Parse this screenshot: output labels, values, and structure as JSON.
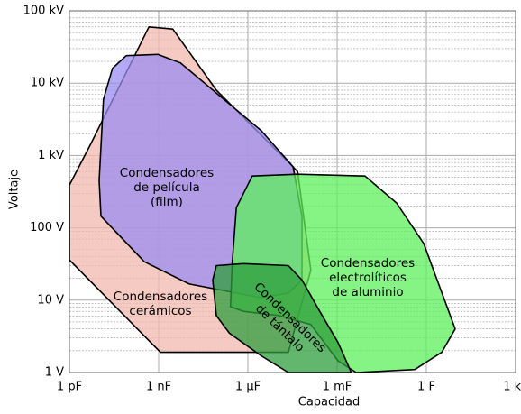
{
  "chart_data": {
    "type": "region",
    "x_label": "Capacidad",
    "y_label": "Voltaje",
    "x_log": true,
    "y_log": true,
    "grid": true,
    "minor_grid": true,
    "xlim": [
      1e-12,
      1000
    ],
    "ylim": [
      1,
      100000
    ],
    "xticks": [
      {
        "value": 1e-12,
        "label": "1 pF"
      },
      {
        "value": 1e-09,
        "label": "1 nF"
      },
      {
        "value": 1e-06,
        "label": "1 µF"
      },
      {
        "value": 0.001,
        "label": "1 mF"
      },
      {
        "value": 1,
        "label": "1 F"
      },
      {
        "value": 1000,
        "label": "1 kF"
      }
    ],
    "yticks": [
      {
        "value": 1,
        "label": "1 V"
      },
      {
        "value": 10,
        "label": "10 V"
      },
      {
        "value": 100,
        "label": "100 V"
      },
      {
        "value": 1000,
        "label": "1 kV"
      },
      {
        "value": 10000,
        "label": "10 kV"
      },
      {
        "value": 100000,
        "label": "100 kV"
      }
    ],
    "series": [
      {
        "name": "Condensadores\ncerámicos",
        "color": "#f2b8ae",
        "x": [
          1e-12,
          5e-12,
          4.7e-10,
          3e-09,
          8.7e-08,
          4.7e-05,
          0.00013,
          2.3e-05,
          1.15e-09,
          1e-12
        ],
        "y": [
          390,
          1400,
          60000,
          56000,
          8000,
          600,
          26,
          1.9,
          1.9,
          36
        ]
      },
      {
        "name": "Condensadores\nde película\n(film)",
        "color": "#9b8cf0",
        "x": [
          8.1e-11,
          9.3e-10,
          5.4e-09,
          2.8e-06,
          3.3e-05,
          6.6e-05,
          6.6e-05,
          2.3e-05,
          2.8e-06,
          1.07e-08,
          3.3e-10,
          1.15e-11,
          1e-11,
          1.4e-11,
          2.8e-11
        ],
        "y": [
          24000,
          25000,
          19000,
          2200,
          700,
          145,
          19,
          12.5,
          10.8,
          16.7,
          34,
          145,
          450,
          6000,
          16000
        ]
      },
      {
        "name": "Condensadores\nelectrolíticos\nde aluminio",
        "color": "#5cf05c",
        "x": [
          1.4e-06,
          4.7e-05,
          0.0087,
          0.1,
          0.81,
          9.3,
          3.3,
          0.41,
          0.0044,
          0.00107,
          0.00013,
          1.15e-05,
          7.1e-07,
          2.6e-07,
          3e-07,
          4.1e-07
        ],
        "y": [
          520,
          550,
          520,
          220,
          61,
          4,
          1.9,
          1.1,
          1,
          1.45,
          4.6,
          6.1,
          7,
          8.1,
          34,
          190
        ]
      },
      {
        "name": "Condensadores\nde tántalo",
        "color": "#2f9e3c",
        "x": [
          8.7e-08,
          7.1e-07,
          2.3e-05,
          6.6e-05,
          0.00026,
          0.00107,
          0.003,
          2.3e-05,
          2.8e-06,
          2.4e-07,
          8.7e-08,
          6.6e-08
        ],
        "y": [
          30,
          32,
          30,
          19,
          7,
          2.6,
          1,
          1,
          1.7,
          3.5,
          6.1,
          19
        ]
      }
    ]
  }
}
